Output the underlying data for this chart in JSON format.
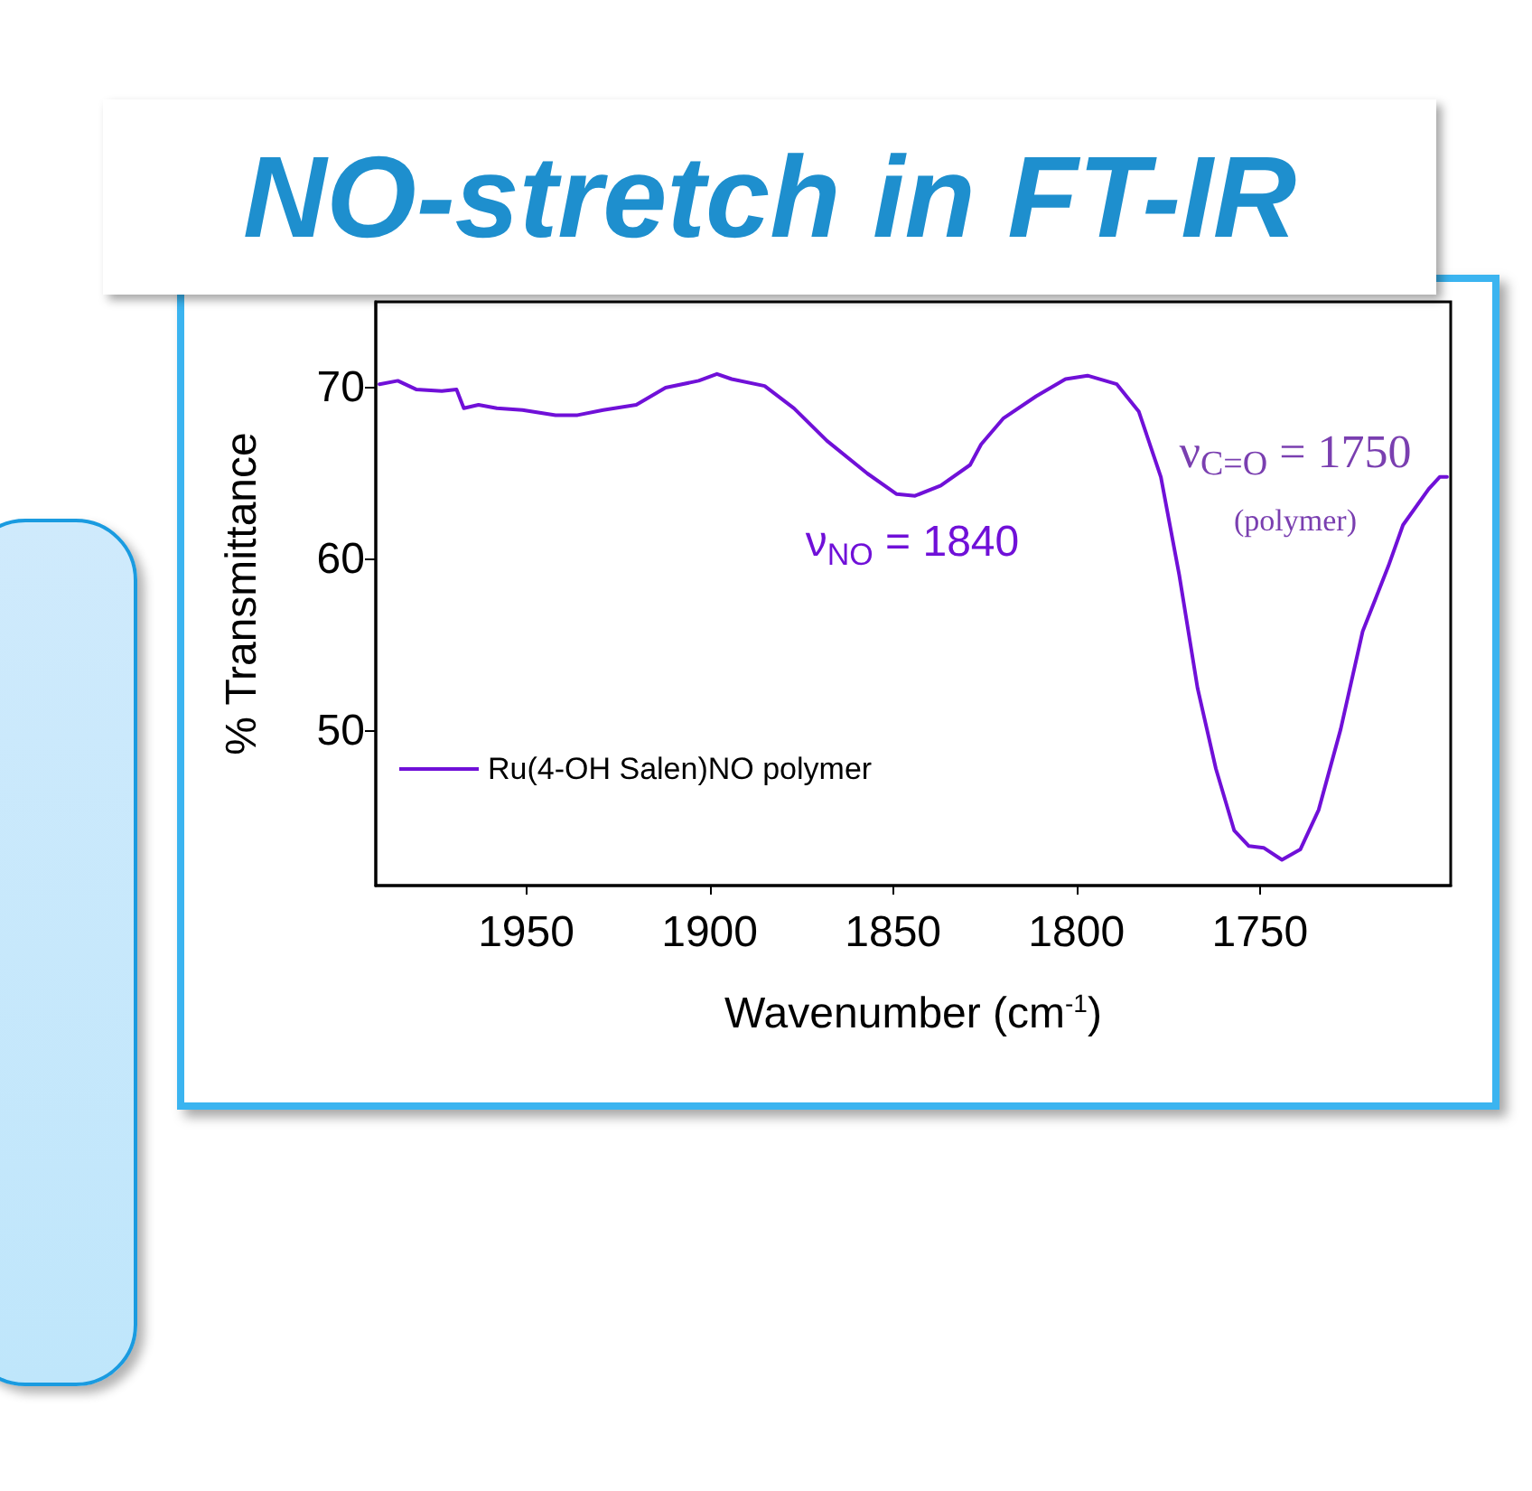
{
  "chart_data": {
    "type": "line",
    "title": "NO-stretch in FT-IR",
    "xlabel": "Wavenumber (cm$^{-1}$)",
    "ylabel": "% Transmittance",
    "xlim": [
      1991,
      1698
    ],
    "xticks": [
      1950,
      1900,
      1850,
      1800,
      1750
    ],
    "ylim": [
      41,
      75
    ],
    "yticks": [
      50,
      60,
      70
    ],
    "grid": false,
    "legend": "left",
    "line_style": "solid",
    "marker": "none",
    "annotations": [
      "ν$_{NO}$ = 1840",
      "ν$_{C=O}$ = 1750",
      "(polymer)"
    ],
    "series": [
      {
        "name": "Ru(4-OH Salen)NO polymer",
        "color": "#7010d8",
        "x": [
          1990,
          1985,
          1980,
          1973,
          1969,
          1967,
          1963,
          1958,
          1951,
          1942,
          1936,
          1929,
          1920,
          1912,
          1903,
          1898,
          1894,
          1885,
          1877,
          1868,
          1857,
          1849,
          1844,
          1837,
          1829,
          1826,
          1820,
          1811,
          1803,
          1797,
          1789,
          1783,
          1777,
          1772,
          1767,
          1762,
          1757,
          1753,
          1749,
          1744,
          1739,
          1734,
          1728,
          1722,
          1715,
          1711,
          1704,
          1701,
          1699
        ],
        "values": [
          70.2,
          70.4,
          69.9,
          69.8,
          69.9,
          68.8,
          69.0,
          68.8,
          68.7,
          68.4,
          68.4,
          68.7,
          69.0,
          70.0,
          70.4,
          70.8,
          70.5,
          70.1,
          68.8,
          66.9,
          65.0,
          63.8,
          63.7,
          64.3,
          65.5,
          66.7,
          68.2,
          69.5,
          70.5,
          70.7,
          70.2,
          68.6,
          64.8,
          59.1,
          52.5,
          47.8,
          44.2,
          43.3,
          43.2,
          42.5,
          43.1,
          45.4,
          50.1,
          55.8,
          59.6,
          62.0,
          64.1,
          64.8,
          64.8
        ]
      }
    ]
  }
}
